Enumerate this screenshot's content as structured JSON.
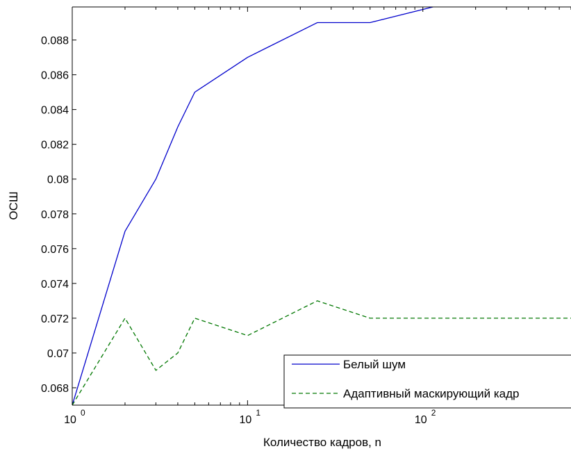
{
  "chart_data": {
    "type": "line",
    "title": "",
    "xlabel": "Количество кадров, n",
    "ylabel": "ОСШ",
    "xscale": "log",
    "xlim": [
      1,
      700
    ],
    "ylim": [
      0.067,
      0.0899
    ],
    "xticks": [
      {
        "value": 1,
        "base": "10",
        "exp": "0"
      },
      {
        "value": 10,
        "base": "10",
        "exp": "1"
      },
      {
        "value": 100,
        "base": "10",
        "exp": "2"
      }
    ],
    "yticks": [
      0.068,
      0.07,
      0.072,
      0.074,
      0.076,
      0.078,
      0.08,
      0.082,
      0.084,
      0.086,
      0.088
    ],
    "ytick_labels": [
      "0.068",
      "0.07",
      "0.072",
      "0.074",
      "0.076",
      "0.078",
      "0.08",
      "0.082",
      "0.084",
      "0.086",
      "0.088"
    ],
    "grid": false,
    "legend_position": "bottom-right",
    "series": [
      {
        "name": "Белый шум",
        "color": "#0000cc",
        "style": "solid",
        "x": [
          1,
          2,
          3,
          4,
          5,
          10,
          25,
          50,
          125,
          700
        ],
        "y": [
          0.067,
          0.077,
          0.08,
          0.083,
          0.085,
          0.087,
          0.089,
          0.089,
          0.09,
          0.09
        ]
      },
      {
        "name": "Адаптивный маскирующий кадр",
        "color": "#007700",
        "style": "dashed",
        "x": [
          1,
          2,
          3,
          4,
          5,
          10,
          25,
          50,
          700
        ],
        "y": [
          0.067,
          0.072,
          0.069,
          0.07,
          0.072,
          0.071,
          0.073,
          0.072,
          0.072
        ]
      }
    ]
  }
}
